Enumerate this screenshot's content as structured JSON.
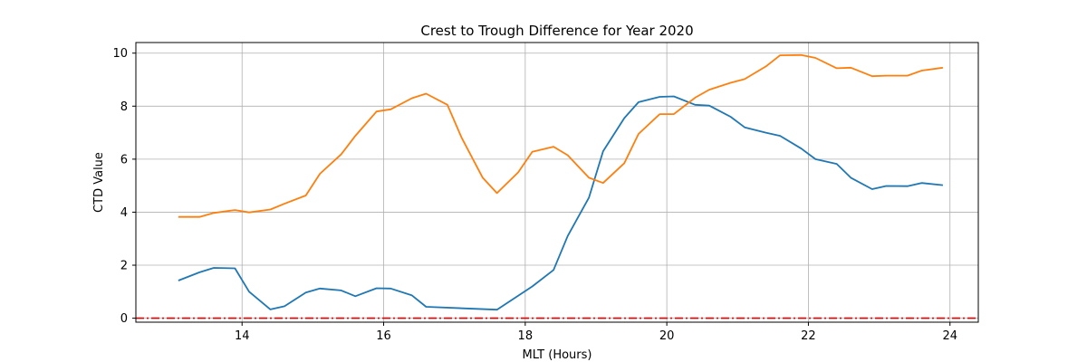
{
  "chart_data": {
    "type": "line",
    "title": "Crest to Trough Difference for Year 2020",
    "xlabel": "MLT (Hours)",
    "ylabel": "CTD Value",
    "xlim": [
      12.5,
      24.4
    ],
    "ylim": [
      -0.15,
      10.4
    ],
    "xticks": [
      14,
      16,
      18,
      20,
      22,
      24
    ],
    "yticks": [
      0,
      2,
      4,
      6,
      8,
      10
    ],
    "grid": true,
    "reference_line": {
      "y": 0,
      "color": "#e00000",
      "style": "dash-dot"
    },
    "series": [
      {
        "color": "#1f77b4",
        "x": [
          13.1,
          13.4,
          13.6,
          13.9,
          14.1,
          14.4,
          14.6,
          14.9,
          15.1,
          15.4,
          15.6,
          15.9,
          16.1,
          16.4,
          16.6,
          17.6,
          18.1,
          18.4,
          18.6,
          18.9,
          19.1,
          19.4,
          19.6,
          19.9,
          20.1,
          20.4,
          20.6,
          20.9,
          21.1,
          21.4,
          21.6,
          21.9,
          22.1,
          22.4,
          22.6,
          22.9,
          23.1,
          23.4,
          23.6,
          23.9
        ],
        "y": [
          1.42,
          1.73,
          1.9,
          1.88,
          1.0,
          0.33,
          0.45,
          0.97,
          1.12,
          1.05,
          0.83,
          1.13,
          1.12,
          0.86,
          0.43,
          0.32,
          1.2,
          1.82,
          3.1,
          4.55,
          6.3,
          7.55,
          8.15,
          8.35,
          8.37,
          8.05,
          8.02,
          7.6,
          7.2,
          7.0,
          6.88,
          6.4,
          6.0,
          5.82,
          5.3,
          4.87,
          4.99,
          4.98,
          5.1,
          5.02
        ]
      },
      {
        "color": "#ff7f0e",
        "x": [
          13.1,
          13.4,
          13.6,
          13.9,
          14.1,
          14.4,
          14.6,
          14.9,
          15.1,
          15.4,
          15.6,
          15.9,
          16.1,
          16.4,
          16.6,
          16.9,
          17.1,
          17.4,
          17.6,
          17.9,
          18.1,
          18.4,
          18.6,
          18.9,
          19.1,
          19.4,
          19.6,
          19.9,
          20.1,
          20.4,
          20.6,
          20.9,
          21.1,
          21.4,
          21.6,
          21.9,
          22.1,
          22.4,
          22.6,
          22.9,
          23.1,
          23.4,
          23.6,
          23.9
        ],
        "y": [
          3.82,
          3.82,
          3.97,
          4.08,
          3.99,
          4.1,
          4.32,
          4.63,
          5.45,
          6.18,
          6.88,
          7.8,
          7.88,
          8.3,
          8.47,
          8.05,
          6.82,
          5.3,
          4.72,
          5.5,
          6.28,
          6.47,
          6.15,
          5.3,
          5.1,
          5.85,
          6.95,
          7.7,
          7.7,
          8.32,
          8.62,
          8.88,
          9.02,
          9.5,
          9.92,
          9.93,
          9.82,
          9.43,
          9.45,
          9.13,
          9.15,
          9.15,
          9.34,
          9.45
        ]
      }
    ]
  }
}
